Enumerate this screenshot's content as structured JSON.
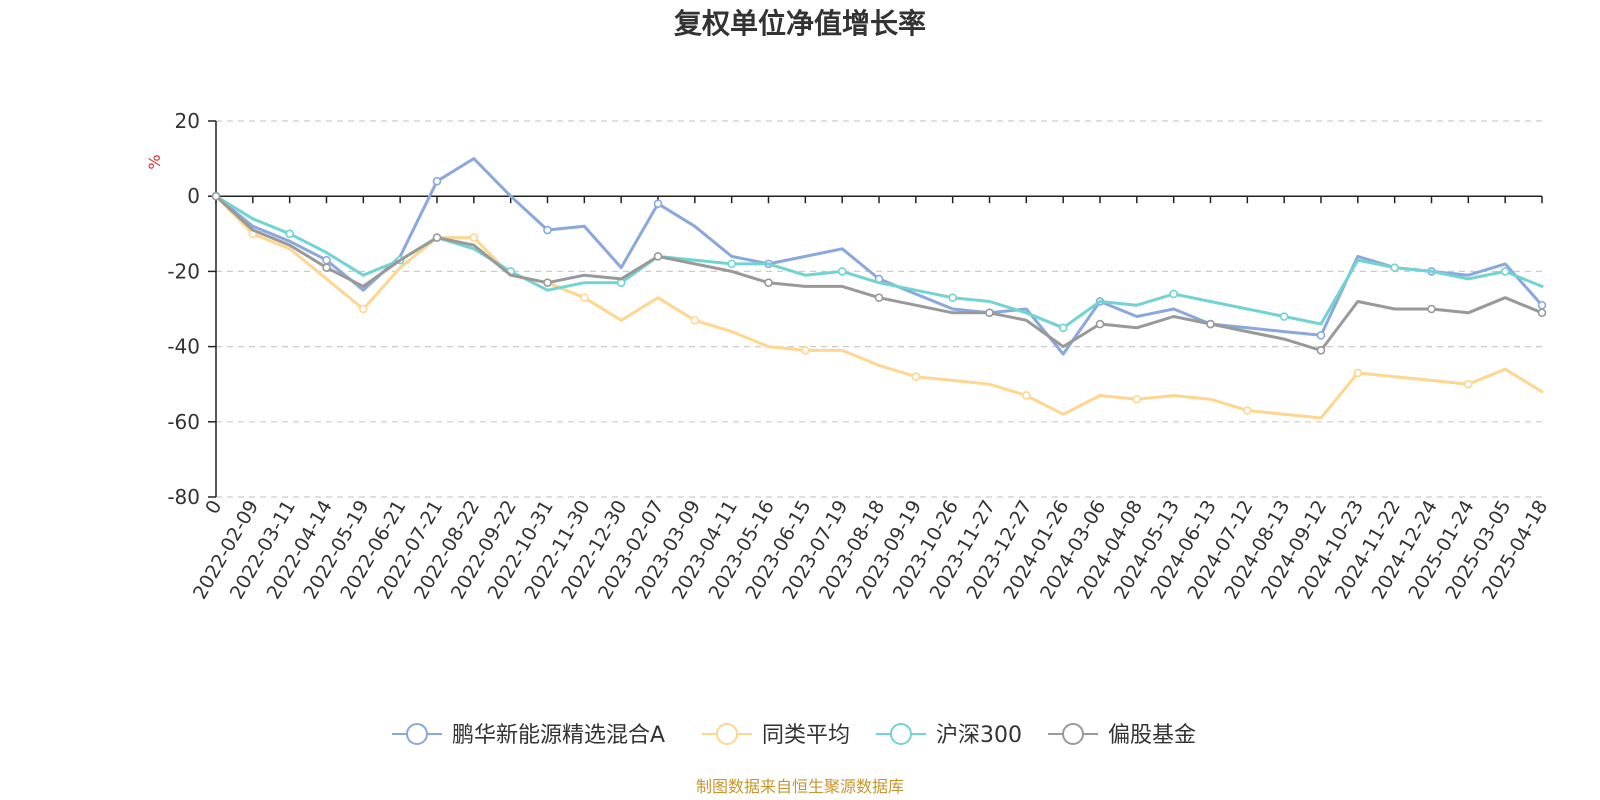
{
  "chart_data": {
    "type": "line",
    "title": "复权单位净值增长率",
    "ylabel": "%",
    "ylim": [
      -80,
      20
    ],
    "yticks": [
      20,
      0,
      -20,
      -40,
      -60,
      -80
    ],
    "grid": true,
    "legend_position": "bottom",
    "source": "制图数据来自恒生聚源数据库",
    "categories": [
      "0",
      "2022-02-09",
      "2022-03-11",
      "2022-04-14",
      "2022-05-19",
      "2022-06-21",
      "2022-07-21",
      "2022-08-22",
      "2022-09-22",
      "2022-10-31",
      "2022-11-30",
      "2022-12-30",
      "2023-02-07",
      "2023-03-09",
      "2023-04-11",
      "2023-05-16",
      "2023-06-15",
      "2023-07-19",
      "2023-08-18",
      "2023-09-19",
      "2023-10-26",
      "2023-11-27",
      "2023-12-27",
      "2024-01-26",
      "2024-03-06",
      "2024-04-08",
      "2024-05-13",
      "2024-06-13",
      "2024-07-12",
      "2024-08-13",
      "2024-09-12",
      "2024-10-23",
      "2024-11-22",
      "2024-12-24",
      "2025-01-24",
      "2025-03-05",
      "2025-04-18"
    ],
    "series": [
      {
        "name": "鹏华新能源精选混合A",
        "color": "#8aa8db",
        "values": [
          0,
          -8,
          -12,
          -17,
          -25,
          -16,
          4,
          10,
          0,
          -9,
          -8,
          -19,
          -2,
          -8,
          -16,
          -18,
          -16,
          -14,
          -22,
          -26,
          -30,
          -31,
          -30,
          -42,
          -28,
          -32,
          -30,
          -34,
          -35,
          -36,
          -37,
          -16,
          -19,
          -20,
          -21,
          -18,
          -29
        ]
      },
      {
        "name": "同类平均",
        "color": "#ffd690",
        "values": [
          0,
          -10,
          -14,
          -22,
          -30,
          -19,
          -11,
          -11,
          -21,
          -23,
          -27,
          -33,
          -27,
          -33,
          -36,
          -40,
          -41,
          -41,
          -45,
          -48,
          -49,
          -50,
          -53,
          -58,
          -53,
          -54,
          -53,
          -54,
          -57,
          -58,
          -59,
          -47,
          -48,
          -49,
          -50,
          -46,
          -52
        ]
      },
      {
        "name": "沪深300",
        "color": "#72d3d3",
        "values": [
          0,
          -6,
          -10,
          -15,
          -21,
          -17,
          -11,
          -14,
          -20,
          -25,
          -23,
          -23,
          -16,
          -17,
          -18,
          -18,
          -21,
          -20,
          -23,
          -25,
          -27,
          -28,
          -31,
          -35,
          -28,
          -29,
          -26,
          -28,
          -30,
          -32,
          -34,
          -17,
          -19,
          -20,
          -22,
          -20,
          -24
        ]
      },
      {
        "name": "偏股基金",
        "color": "#999999",
        "values": [
          0,
          -9,
          -13,
          -19,
          -24,
          -17,
          -11,
          -13,
          -21,
          -23,
          -21,
          -22,
          -16,
          -18,
          -20,
          -23,
          -24,
          -24,
          -27,
          -29,
          -31,
          -31,
          -33,
          -40,
          -34,
          -35,
          -32,
          -34,
          -36,
          -38,
          -41,
          -28,
          -30,
          -30,
          -31,
          -27,
          -31
        ]
      }
    ]
  }
}
